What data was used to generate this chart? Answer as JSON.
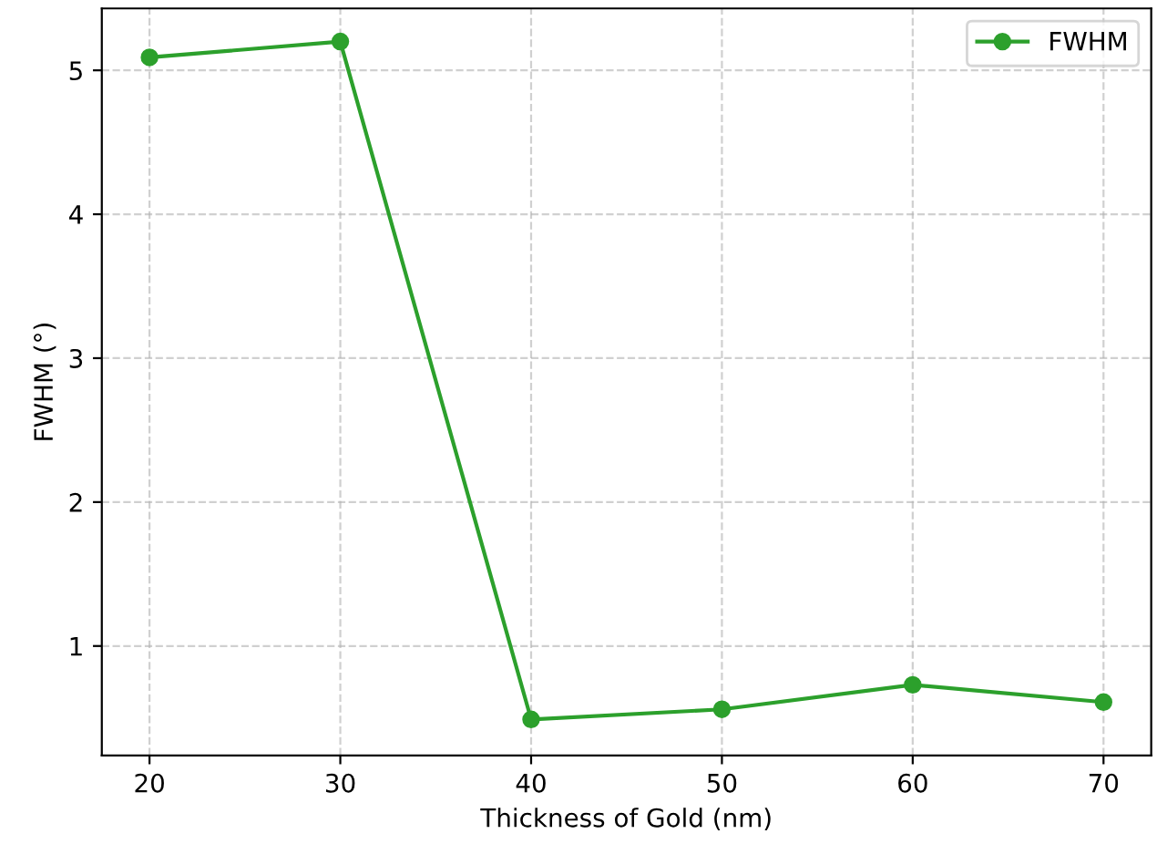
{
  "chart_data": {
    "type": "line",
    "xlabel": "Thickness of Gold (nm)",
    "ylabel": "FWHM (°)",
    "x": [
      20,
      30,
      40,
      50,
      60,
      70
    ],
    "series": [
      {
        "name": "FWHM",
        "color": "#2ca02c",
        "values": [
          5.09,
          5.2,
          0.49,
          0.56,
          0.73,
          0.61
        ]
      }
    ],
    "xlim": [
      17.5,
      72.5
    ],
    "ylim": [
      0.24,
      5.43
    ],
    "xticks": [
      20,
      30,
      40,
      50,
      60,
      70
    ],
    "yticks": [
      1,
      2,
      3,
      4,
      5
    ],
    "grid": true,
    "legend": "top right",
    "marker": "circle",
    "line_style": "solid"
  }
}
